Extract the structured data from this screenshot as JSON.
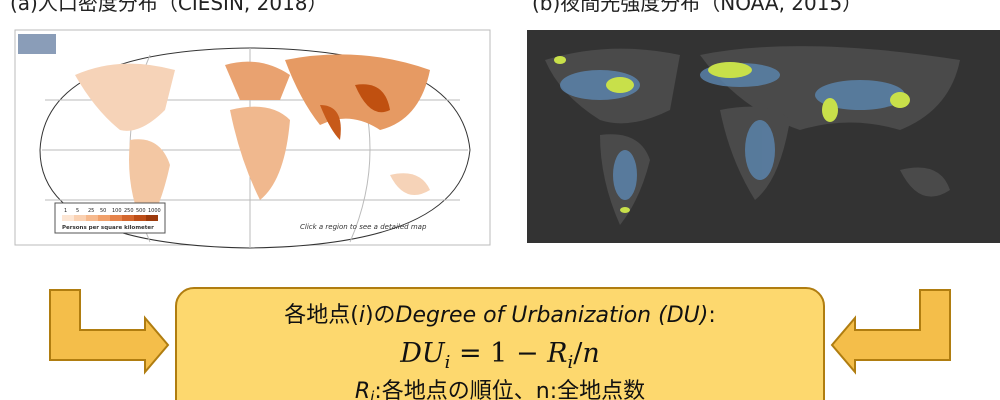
{
  "panels": [
    {
      "title": "(a)人口密度分布（CIESIN, 2018）",
      "legend": {
        "ticks": [
          "1",
          "5",
          "25",
          "50",
          "100",
          "250",
          "500",
          "1000"
        ],
        "caption": "Persons per square kilometer"
      },
      "note": "Click a region to see a detailed map"
    },
    {
      "title": "(b)夜間光強度分布（NOAA, 2015）"
    }
  ],
  "box": {
    "line1": [
      "各地点(",
      "i",
      ")の",
      "Degree of Urbanization (DU)",
      ":"
    ],
    "formula": [
      "DU",
      "i",
      " = 1 − ",
      "R",
      "i",
      "/",
      "n"
    ],
    "line3": [
      "R",
      "i",
      ":各地点の順位、n:全地点数"
    ]
  }
}
